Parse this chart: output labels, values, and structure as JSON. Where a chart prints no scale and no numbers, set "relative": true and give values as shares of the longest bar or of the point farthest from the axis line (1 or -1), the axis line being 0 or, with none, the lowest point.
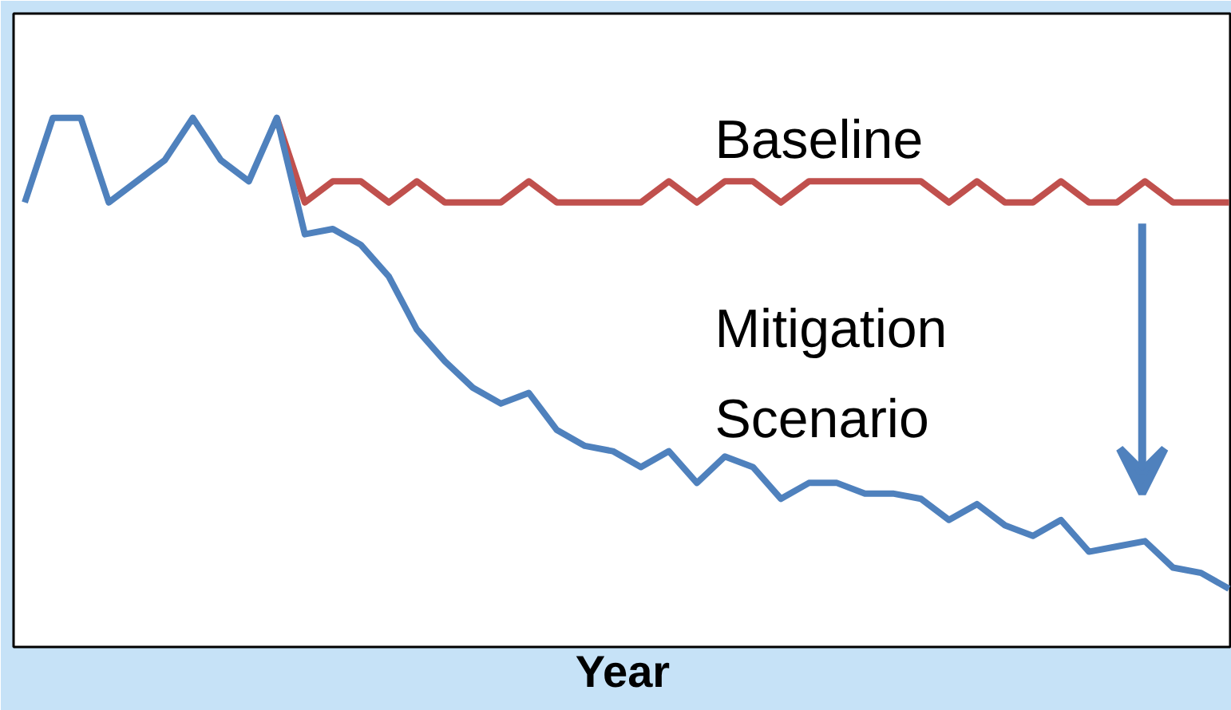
{
  "chart_data": {
    "type": "line",
    "relative": true,
    "xlabel": "Year",
    "grid": false,
    "marker": "none",
    "line_style": "solid",
    "categories": [
      null,
      null,
      null,
      null,
      null,
      null,
      null,
      null,
      null,
      null,
      null,
      null,
      null,
      null,
      null,
      null,
      null,
      null,
      null,
      null,
      null,
      null,
      null,
      null,
      null,
      null,
      null,
      null,
      null,
      null,
      null,
      null,
      null,
      null,
      null,
      null,
      null,
      null,
      null,
      null,
      null,
      null,
      null,
      null
    ],
    "series": [
      {
        "name": "Baseline",
        "color": "#c0504d",
        "values": [
          null,
          null,
          null,
          null,
          null,
          null,
          null,
          null,
          null,
          1,
          0.84,
          0.88,
          0.88,
          0.84,
          0.88,
          0.84,
          0.84,
          0.84,
          0.88,
          0.84,
          0.84,
          0.84,
          0.84,
          0.88,
          0.84,
          0.88,
          0.88,
          0.84,
          0.88,
          0.88,
          0.88,
          0.88,
          0.88,
          0.84,
          0.88,
          0.84,
          0.84,
          0.88,
          0.84,
          0.84,
          0.88,
          0.84,
          0.84,
          0.84
        ]
      },
      {
        "name": "Mitigation Scenario",
        "color": "#4f81bd",
        "values": [
          0.84,
          1,
          1,
          0.84,
          0.88,
          0.92,
          1,
          0.92,
          0.88,
          1,
          0.78,
          0.79,
          0.76,
          0.7,
          0.6,
          0.54,
          0.49,
          0.46,
          0.48,
          0.41,
          0.38,
          0.37,
          0.34,
          0.37,
          0.31,
          0.36,
          0.34,
          0.28,
          0.31,
          0.31,
          0.29,
          0.29,
          0.28,
          0.24,
          0.27,
          0.23,
          0.21,
          0.24,
          0.18,
          0.19,
          0.2,
          0.15,
          0.14,
          0.11
        ]
      }
    ]
  }
}
